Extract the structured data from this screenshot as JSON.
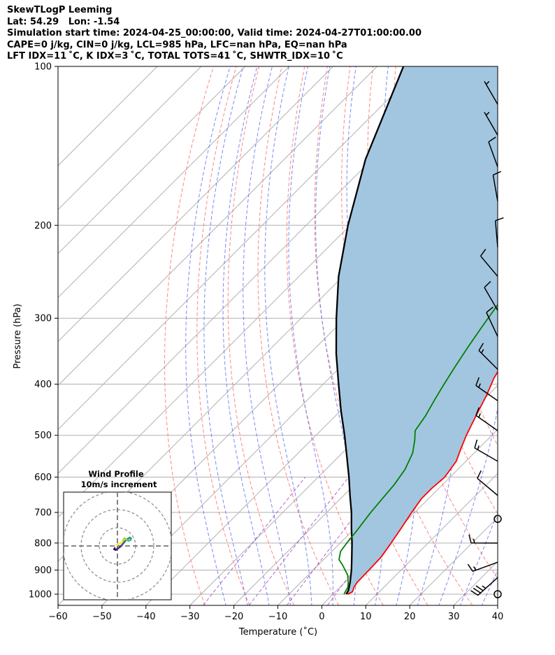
{
  "header": {
    "line1": "SkewTLogP Leeming",
    "line2": "Lat: 54.29   Lon: -1.54",
    "line3": "Simulation start time: 2024-04-25_00:00:00, Valid time: 2024-04-27T01:00:00.00",
    "line4": "CAPE=0 j/kg, CIN=0 j/kg, LCL=985 hPa, LFC=nan hPa, EQ=nan hPa",
    "line5": "LFT IDX=11 ˚C, K IDX=3 ˚C, TOTAL TOTS=41 ˚C, SHWTR_IDX=10 ˚C"
  },
  "colors": {
    "temperature": "#ff0000",
    "dewpoint": "#008000",
    "parcel": "#000000",
    "cape_fill": "#a3c6e0",
    "dry_adiabat": "#ff7070",
    "moist_adiabat": "#5a6cf0",
    "mixing_ratio": "#9a3fd0",
    "isotherm": "#b0b0b0"
  },
  "chart_data": {
    "type": "line",
    "title": "",
    "xlabel": "Temperature (˚C)",
    "ylabel": "Pressure (hPa)",
    "xlim": [
      -60,
      40
    ],
    "ylim": [
      1050,
      100
    ],
    "x_ticks": [
      "−60",
      "−50",
      "−40",
      "−30",
      "−20",
      "−10",
      "0",
      "10",
      "20",
      "30",
      "40"
    ],
    "y_ticks": [
      "100",
      "200",
      "300",
      "400",
      "500",
      "600",
      "700",
      "800",
      "900",
      "1000"
    ],
    "y_scale": "log",
    "grid": true,
    "series": [
      {
        "key": "temperature",
        "points": [
          [
            1000,
            3.3
          ],
          [
            990,
            3.9
          ],
          [
            970,
            3.2
          ],
          [
            950,
            2.8
          ],
          [
            900,
            2.7
          ],
          [
            850,
            2.5
          ],
          [
            800,
            1.6
          ],
          [
            750,
            0.5
          ],
          [
            700,
            -0.7
          ],
          [
            660,
            -1.6
          ],
          [
            630,
            -1.6
          ],
          [
            600,
            -1.2
          ],
          [
            560,
            -2.2
          ],
          [
            530,
            -4.0
          ],
          [
            500,
            -5.8
          ],
          [
            460,
            -8.0
          ],
          [
            420,
            -10.3
          ],
          [
            390,
            -12.5
          ],
          [
            360,
            -14.2
          ],
          [
            330,
            -15.2
          ],
          [
            300,
            -16.1
          ],
          [
            270,
            -16.6
          ],
          [
            250,
            -15.8
          ],
          [
            230,
            -14.5
          ],
          [
            210,
            -12.5
          ],
          [
            195,
            -9.8
          ],
          [
            185,
            -8.0
          ],
          [
            170,
            -9.5
          ],
          [
            155,
            -10.5
          ],
          [
            140,
            -13.0
          ],
          [
            120,
            -15.5
          ],
          [
            100,
            -17.5
          ]
        ]
      },
      {
        "key": "dewpoint",
        "points": [
          [
            1000,
            2.5
          ],
          [
            970,
            1.8
          ],
          [
            950,
            0.8
          ],
          [
            920,
            -1.0
          ],
          [
            880,
            -4.5
          ],
          [
            860,
            -6.5
          ],
          [
            830,
            -8.0
          ],
          [
            800,
            -8.5
          ],
          [
            760,
            -9.0
          ],
          [
            730,
            -9.5
          ],
          [
            700,
            -10.0
          ],
          [
            660,
            -10.5
          ],
          [
            620,
            -11.0
          ],
          [
            580,
            -12.0
          ],
          [
            540,
            -14.0
          ],
          [
            510,
            -16.5
          ],
          [
            490,
            -18.5
          ],
          [
            460,
            -19.5
          ],
          [
            430,
            -21.0
          ],
          [
            400,
            -22.5
          ],
          [
            370,
            -24.0
          ],
          [
            340,
            -25.5
          ],
          [
            310,
            -27.0
          ],
          [
            280,
            -28.5
          ],
          [
            260,
            -29.5
          ],
          [
            240,
            -30.5
          ],
          [
            220,
            -33.5
          ],
          [
            200,
            -36.5
          ],
          [
            190,
            -37.8
          ],
          [
            180,
            -38.5
          ],
          [
            160,
            -40.0
          ],
          [
            140,
            -42.5
          ],
          [
            120,
            -44.5
          ],
          [
            100,
            -46.5
          ]
        ]
      },
      {
        "key": "parcel",
        "points": [
          [
            1000,
            3.0
          ],
          [
            985,
            2.7
          ],
          [
            950,
            1.2
          ],
          [
            900,
            -1.3
          ],
          [
            850,
            -4.2
          ],
          [
            800,
            -7.3
          ],
          [
            750,
            -10.8
          ],
          [
            700,
            -14.4
          ],
          [
            650,
            -18.6
          ],
          [
            600,
            -23.0
          ],
          [
            550,
            -28.0
          ],
          [
            500,
            -33.5
          ],
          [
            450,
            -39.8
          ],
          [
            400,
            -46.5
          ],
          [
            350,
            -54.0
          ],
          [
            300,
            -62.0
          ],
          [
            250,
            -71.0
          ],
          [
            200,
            -80.5
          ],
          [
            150,
            -91.5
          ],
          [
            100,
            -104.0
          ]
        ]
      }
    ],
    "wind_barbs": [
      {
        "p": 1000,
        "calm": true
      },
      {
        "p": 930,
        "speed": 35,
        "dir": 228
      },
      {
        "p": 870,
        "speed": 15,
        "dir": 250
      },
      {
        "p": 800,
        "speed": 15,
        "dir": 270
      },
      {
        "p": 720,
        "calm": true
      },
      {
        "p": 650,
        "speed": 10,
        "dir": 310
      },
      {
        "p": 560,
        "speed": 15,
        "dir": 300
      },
      {
        "p": 490,
        "speed": 15,
        "dir": 305
      },
      {
        "p": 430,
        "speed": 15,
        "dir": 305
      },
      {
        "p": 375,
        "speed": 15,
        "dir": 315
      },
      {
        "p": 325,
        "speed": 10,
        "dir": 335
      },
      {
        "p": 290,
        "speed": 10,
        "dir": 330
      },
      {
        "p": 250,
        "speed": 10,
        "dir": 320
      },
      {
        "p": 220,
        "speed": 10,
        "dir": 355
      },
      {
        "p": 180,
        "speed": 10,
        "dir": 350
      },
      {
        "p": 155,
        "speed": 10,
        "dir": 340
      },
      {
        "p": 135,
        "speed": 5,
        "dir": 330
      },
      {
        "p": 118,
        "speed": 5,
        "dir": 330
      }
    ],
    "inset": {
      "title": "Wind Profile",
      "subtitle": "10m/s increment",
      "ring_increment": 10,
      "hodograph_uv": [
        [
          -1.5,
          -1.2
        ],
        [
          -1.8,
          -1.8
        ],
        [
          -1.0,
          -2.2
        ],
        [
          0.0,
          -1.6
        ],
        [
          1.5,
          -0.5
        ],
        [
          2.5,
          0.5
        ],
        [
          3.5,
          1.8
        ],
        [
          4.5,
          3.0
        ],
        [
          5.5,
          3.8
        ],
        [
          6.8,
          4.6
        ],
        [
          7.5,
          4.2
        ],
        [
          7.2,
          3.2
        ],
        [
          6.0,
          2.8
        ],
        [
          5.0,
          3.5
        ],
        [
          3.8,
          4.3
        ],
        [
          2.8,
          2.5
        ],
        [
          1.5,
          1.2
        ],
        [
          -0.5,
          0.8
        ]
      ]
    }
  }
}
